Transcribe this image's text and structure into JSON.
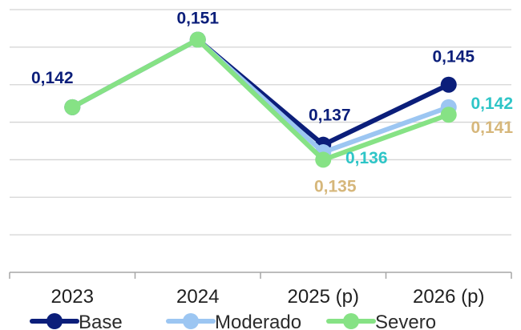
{
  "chart_data": {
    "type": "line",
    "categories": [
      "2023",
      "2024",
      "2025 (p)",
      "2026 (p)"
    ],
    "series": [
      {
        "name": "Base",
        "color": "#0b1e7a",
        "values": [
          0.142,
          0.151,
          0.137,
          0.145
        ],
        "labels": [
          "0,142",
          "0,151",
          "0,137",
          "0,145"
        ]
      },
      {
        "name": "Moderado",
        "color": "#9cc6f2",
        "values": [
          0.142,
          0.151,
          0.136,
          0.142
        ],
        "labels": [
          "",
          "",
          "0,136",
          "0,142"
        ]
      },
      {
        "name": "Severo",
        "color": "#86e285",
        "values": [
          0.142,
          0.151,
          0.135,
          0.141
        ],
        "labels": [
          "",
          "",
          "0,135",
          "0,141"
        ]
      }
    ],
    "label_colors": [
      "#0b1e7a",
      "#2ec5c7",
      "#d6b77b"
    ],
    "ylim": [
      0.12,
      0.155
    ],
    "grid": true,
    "legend": "bottom"
  }
}
